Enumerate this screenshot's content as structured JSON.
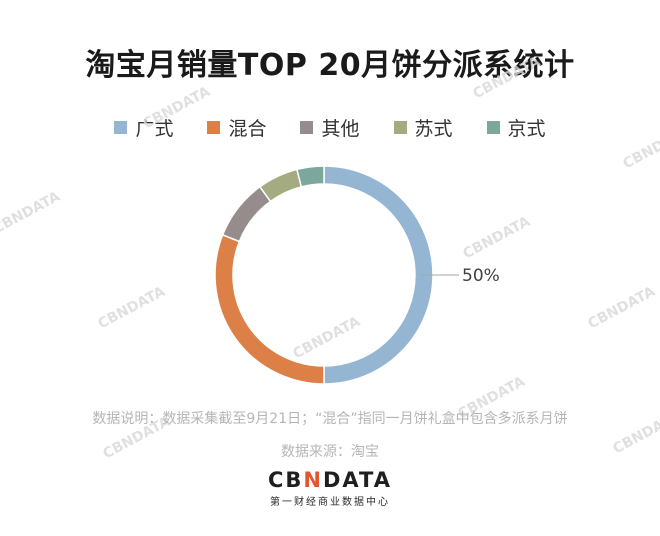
{
  "title": "淘宝月销量TOP 20月饼分派系统计",
  "legend": [
    {
      "label": "广式",
      "color": "#94b6d2"
    },
    {
      "label": "混合",
      "color": "#dd8047"
    },
    {
      "label": "其他",
      "color": "#968c8c"
    },
    {
      "label": "苏式",
      "color": "#a5ab81"
    },
    {
      "label": "京式",
      "color": "#7ba79d"
    }
  ],
  "chart_data": {
    "type": "pie",
    "categories": [
      "广式",
      "混合",
      "其他",
      "苏式",
      "京式"
    ],
    "values": [
      50,
      31,
      9,
      6,
      4
    ],
    "data_labels": [
      "50%",
      "",
      "",
      "",
      ""
    ],
    "donut": true
  },
  "notes": {
    "description": "数据说明：数据采集截至9月21日；“混合”指同一月饼礼盒中包含多派系月饼",
    "source": "数据来源：淘宝"
  },
  "logo": {
    "text_before": "CB",
    "text_accent": "N",
    "text_after": "DATA",
    "subtitle": "第一财经商业数据中心"
  },
  "watermark_text": "CBNDATA"
}
